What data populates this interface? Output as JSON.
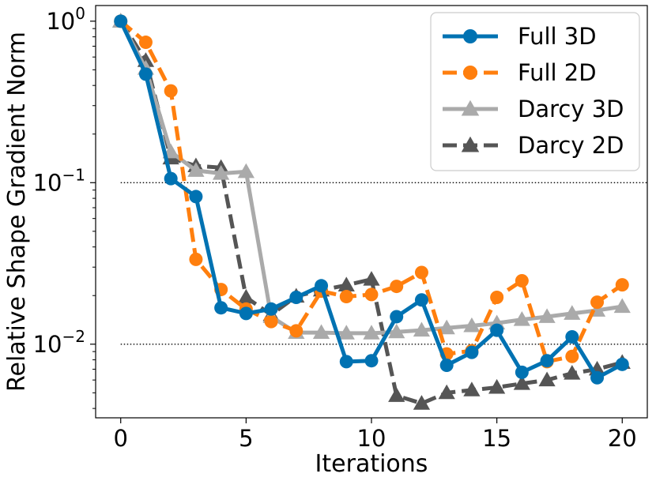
{
  "chart_data": {
    "type": "line",
    "title": "",
    "xlabel": "Iterations",
    "ylabel": "Relative Shape Gradient Norm",
    "yscale": "log",
    "xlim": [
      -1,
      21
    ],
    "ylim": [
      0.0035,
      1.25
    ],
    "x_ticks": [
      0,
      5,
      10,
      15,
      20
    ],
    "x_tick_labels": [
      "0",
      "5",
      "10",
      "15",
      "20"
    ],
    "y_ticks": [
      {
        "value": 1,
        "base": "10",
        "exp": "0"
      },
      {
        "value": 0.1,
        "base": "10",
        "exp": "−1"
      },
      {
        "value": 0.01,
        "base": "10",
        "exp": "−2"
      }
    ],
    "reference_lines": [
      0.1,
      0.01
    ],
    "legend_position": "top-right",
    "x": [
      0,
      1,
      2,
      3,
      4,
      5,
      6,
      7,
      8,
      9,
      10,
      11,
      12,
      13,
      14,
      15,
      16,
      17,
      18,
      19,
      20
    ],
    "series": [
      {
        "name": "Full 3D",
        "color": "#0072B2",
        "marker": "circle",
        "dash": "solid",
        "values": [
          1.0,
          0.47,
          0.106,
          0.082,
          0.0168,
          0.0155,
          0.0165,
          0.0195,
          0.023,
          0.0078,
          0.0079,
          0.0148,
          0.0188,
          0.0074,
          0.0089,
          0.0122,
          0.0067,
          0.0079,
          0.0111,
          0.0062,
          0.0075
        ]
      },
      {
        "name": "Full 2D",
        "color": "#FF7F0E",
        "marker": "circle",
        "dash": "dashed",
        "values": [
          1.0,
          0.74,
          0.37,
          0.0335,
          0.0218,
          0.0165,
          0.0138,
          0.0121,
          0.0213,
          0.0197,
          0.0203,
          0.0228,
          0.0278,
          0.0087,
          0.0091,
          0.0195,
          0.0247,
          0.0078,
          0.0084,
          0.0182,
          0.0233
        ]
      },
      {
        "name": "Darcy 3D",
        "color": "#AAAAAA",
        "marker": "triangle",
        "dash": "solid",
        "values": [
          1.0,
          0.51,
          0.155,
          0.119,
          0.114,
          0.117,
          0.0148,
          0.0118,
          0.0118,
          0.0117,
          0.0117,
          0.0119,
          0.0122,
          0.0126,
          0.013,
          0.0135,
          0.0142,
          0.0148,
          0.0155,
          0.0162,
          0.0171
        ]
      },
      {
        "name": "Darcy 2D",
        "color": "#555555",
        "marker": "triangle",
        "dash": "dashed",
        "values": [
          1.0,
          0.57,
          0.142,
          0.127,
          0.124,
          0.0195,
          0.0152,
          0.0198,
          0.0216,
          0.0232,
          0.0252,
          0.0048,
          0.0043,
          0.005,
          0.0052,
          0.0054,
          0.0057,
          0.006,
          0.0066,
          0.007,
          0.0077
        ]
      }
    ]
  }
}
